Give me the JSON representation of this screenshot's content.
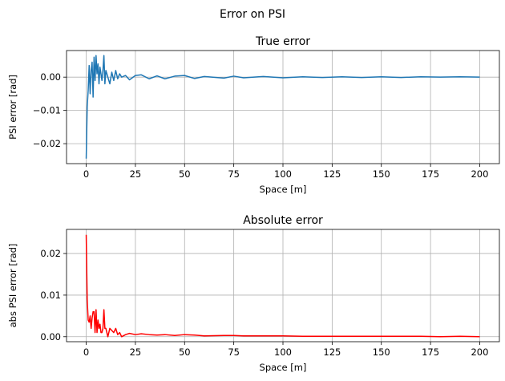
{
  "figure": {
    "title": "Error on PSI"
  },
  "chart_data": [
    {
      "type": "line",
      "title": "True error",
      "xlabel": "Space [m]",
      "ylabel": "PSI error [rad]",
      "xlim": [
        -10,
        210
      ],
      "ylim": [
        -0.026,
        0.008
      ],
      "xticks": [
        0,
        25,
        50,
        75,
        100,
        125,
        150,
        175,
        200
      ],
      "yticks": [
        -0.02,
        -0.01,
        0.0
      ],
      "ytick_labels": [
        "−0.02",
        "−0.01",
        "0.00"
      ],
      "grid": true,
      "color": "#1f77b4",
      "series": [
        {
          "x": [
            0,
            0.5,
            1,
            1.5,
            2,
            2.5,
            3,
            3.5,
            4,
            4.5,
            5,
            5.5,
            6,
            6.5,
            7,
            7.5,
            8,
            8.5,
            9,
            9.5,
            10,
            11,
            12,
            13,
            14,
            15,
            16,
            17,
            18,
            20,
            22,
            25,
            28,
            32,
            36,
            40,
            45,
            50,
            55,
            60,
            70,
            75,
            80,
            90,
            100,
            110,
            120,
            130,
            140,
            150,
            160,
            170,
            180,
            190,
            200
          ],
          "y": [
            -0.0245,
            -0.009,
            -0.004,
            0.0035,
            -0.005,
            0.002,
            0.0045,
            -0.006,
            0.006,
            -0.001,
            0.0065,
            0.001,
            0.004,
            -0.002,
            0.003,
            0.001,
            -0.001,
            0.002,
            0.0065,
            -0.002,
            0.002,
            0.0,
            -0.002,
            0.0015,
            -0.001,
            0.002,
            -0.0005,
            0.001,
            0.0,
            0.0005,
            -0.0008,
            0.0005,
            0.0007,
            -0.0005,
            0.0004,
            -0.0005,
            0.0003,
            0.0005,
            -0.0004,
            0.0002,
            -0.0003,
            0.0003,
            -0.0002,
            0.0002,
            -0.0002,
            0.0001,
            -0.0001,
            0.0001,
            -0.0001,
            0.0001,
            -0.0001,
            0.0001,
            0.0,
            0.0001,
            0.0
          ]
        }
      ]
    },
    {
      "type": "line",
      "title": "Absolute error",
      "xlabel": "Space [m]",
      "ylabel": "abs PSI error [rad]",
      "xlim": [
        -10,
        210
      ],
      "ylim": [
        -0.0012,
        0.0258
      ],
      "xticks": [
        0,
        25,
        50,
        75,
        100,
        125,
        150,
        175,
        200
      ],
      "yticks": [
        0.0,
        0.01,
        0.02
      ],
      "ytick_labels": [
        "0.00",
        "0.01",
        "0.02"
      ],
      "grid": true,
      "color": "#ff0000",
      "series": [
        {
          "x": [
            0,
            0.5,
            1,
            1.5,
            2,
            2.5,
            3,
            3.5,
            4,
            4.5,
            5,
            5.5,
            6,
            6.5,
            7,
            7.5,
            8,
            8.5,
            9,
            9.5,
            10,
            11,
            12,
            13,
            14,
            15,
            16,
            17,
            18,
            20,
            22,
            25,
            28,
            32,
            36,
            40,
            45,
            50,
            55,
            60,
            70,
            75,
            80,
            90,
            100,
            110,
            120,
            130,
            140,
            150,
            160,
            170,
            180,
            190,
            200
          ],
          "y": [
            0.0245,
            0.009,
            0.004,
            0.0035,
            0.005,
            0.002,
            0.0045,
            0.006,
            0.006,
            0.001,
            0.0065,
            0.001,
            0.004,
            0.002,
            0.003,
            0.001,
            0.001,
            0.002,
            0.0065,
            0.002,
            0.002,
            0.0,
            0.002,
            0.0015,
            0.001,
            0.002,
            0.0005,
            0.001,
            0.0,
            0.0005,
            0.0008,
            0.0005,
            0.0007,
            0.0005,
            0.0004,
            0.0005,
            0.0003,
            0.0005,
            0.0004,
            0.0002,
            0.0003,
            0.0003,
            0.0002,
            0.0002,
            0.0002,
            0.0001,
            0.0001,
            0.0001,
            0.0001,
            0.0001,
            0.0001,
            0.0001,
            0.0,
            0.0001,
            0.0
          ]
        }
      ]
    }
  ]
}
